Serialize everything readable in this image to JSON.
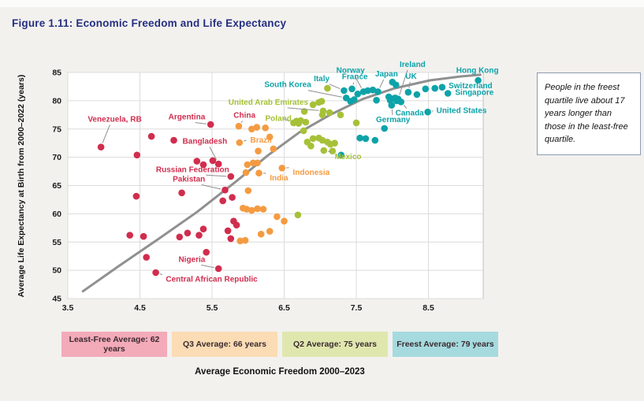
{
  "title": "Figure 1.11: Economic Freedom and Life Expectancy",
  "note": "People in the freest quartile live about 17 years longer than those in the least-free quartile.",
  "palette": {
    "least_free": "#d12d4e",
    "q3": "#f49b42",
    "q2": "#a6c138",
    "freest": "#0da3a8",
    "trend": "#909090",
    "grid": "#dcdcdc",
    "plot_border": "#c0c0c0",
    "leader": "#8f8f8f",
    "title_blue": "#252f80"
  },
  "legend": [
    {
      "label": "Least-Free Average: 62 years",
      "bg": "#f3aab9"
    },
    {
      "label": "Q3 Average: 66 years",
      "bg": "#fbdcb4"
    },
    {
      "label": "Q2 Average: 75 years",
      "bg": "#e0e7ae"
    },
    {
      "label": "Freest Average: 79 years",
      "bg": "#a5dade"
    }
  ],
  "chart_data": {
    "type": "scatter",
    "title": "Figure 1.11: Economic Freedom and Life Expectancy",
    "xlabel": "Average Economic Freedom 2000–2023",
    "ylabel": "Average Life Expectancy at Birth from 2000–2022 (years)",
    "xlim": [
      3.5,
      9.26
    ],
    "ylim": [
      45,
      85
    ],
    "x_ticks": [
      3.5,
      4.5,
      5.5,
      6.5,
      7.5,
      8.5
    ],
    "y_ticks": [
      45,
      50,
      55,
      60,
      65,
      70,
      75,
      80,
      85
    ],
    "grid": true,
    "series": [
      {
        "name": "Least-Free Quartile",
        "color_key": "least_free",
        "points": [
          [
            3.96,
            71.8
          ],
          [
            4.66,
            73.7
          ],
          [
            4.97,
            73.0
          ],
          [
            5.48,
            75.8
          ],
          [
            4.46,
            70.4
          ],
          [
            5.29,
            69.3
          ],
          [
            5.38,
            68.7
          ],
          [
            5.51,
            69.4
          ],
          [
            5.59,
            68.8
          ],
          [
            5.76,
            66.6
          ],
          [
            5.68,
            64.2
          ],
          [
            4.45,
            63.1
          ],
          [
            5.08,
            63.7
          ],
          [
            5.78,
            62.9
          ],
          [
            5.65,
            62.3
          ],
          [
            4.36,
            56.2
          ],
          [
            4.55,
            56.0
          ],
          [
            5.05,
            55.9
          ],
          [
            5.16,
            56.6
          ],
          [
            5.32,
            56.2
          ],
          [
            5.38,
            57.3
          ],
          [
            5.76,
            55.6
          ],
          [
            5.72,
            57.0
          ],
          [
            4.59,
            52.3
          ],
          [
            5.42,
            53.2
          ],
          [
            4.72,
            49.6
          ],
          [
            5.59,
            50.3
          ],
          [
            5.8,
            58.7
          ],
          [
            5.84,
            58.0
          ]
        ]
      },
      {
        "name": "Q3 Quartile",
        "color_key": "q3",
        "points": [
          [
            5.87,
            75.5
          ],
          [
            6.05,
            75.0
          ],
          [
            6.12,
            75.3
          ],
          [
            6.24,
            75.2
          ],
          [
            5.88,
            72.6
          ],
          [
            6.3,
            73.6
          ],
          [
            6.35,
            71.5
          ],
          [
            6.14,
            71.1
          ],
          [
            6.15,
            67.2
          ],
          [
            5.99,
            68.7
          ],
          [
            6.07,
            69.0
          ],
          [
            6.13,
            69.0
          ],
          [
            6.47,
            68.1
          ],
          [
            5.97,
            67.3
          ],
          [
            6.0,
            64.1
          ],
          [
            5.93,
            61.0
          ],
          [
            5.98,
            60.8
          ],
          [
            6.05,
            60.6
          ],
          [
            6.13,
            60.9
          ],
          [
            6.21,
            60.8
          ],
          [
            6.4,
            59.5
          ],
          [
            6.5,
            58.7
          ],
          [
            6.18,
            56.4
          ],
          [
            6.3,
            56.9
          ],
          [
            5.89,
            55.2
          ],
          [
            5.96,
            55.3
          ]
        ]
      },
      {
        "name": "Q2 Quartile",
        "color_key": "q2",
        "points": [
          [
            6.63,
            76.1
          ],
          [
            6.67,
            76.4
          ],
          [
            6.7,
            76.0
          ],
          [
            7.04,
            78.2
          ],
          [
            6.78,
            78.1
          ],
          [
            6.9,
            79.3
          ],
          [
            6.98,
            79.7
          ],
          [
            7.02,
            79.9
          ],
          [
            7.1,
            82.2
          ],
          [
            6.73,
            76.5
          ],
          [
            6.8,
            76.2
          ],
          [
            6.77,
            74.7
          ],
          [
            6.9,
            73.3
          ],
          [
            6.98,
            73.4
          ],
          [
            7.03,
            73.0
          ],
          [
            7.1,
            72.7
          ],
          [
            6.82,
            72.7
          ],
          [
            6.87,
            72.0
          ],
          [
            7.14,
            72.3
          ],
          [
            7.2,
            72.5
          ],
          [
            7.05,
            71.2
          ],
          [
            7.17,
            71.1
          ],
          [
            7.28,
            77.5
          ],
          [
            7.5,
            76.1
          ],
          [
            7.03,
            77.5
          ],
          [
            7.13,
            77.9
          ],
          [
            6.69,
            59.8
          ]
        ]
      },
      {
        "name": "Freest Quartile",
        "color_key": "freest",
        "points": [
          [
            7.33,
            81.8
          ],
          [
            7.44,
            82.1
          ],
          [
            7.36,
            80.5
          ],
          [
            7.42,
            79.9
          ],
          [
            7.47,
            80.2
          ],
          [
            7.6,
            81.6
          ],
          [
            7.66,
            81.8
          ],
          [
            7.73,
            81.9
          ],
          [
            7.8,
            81.6
          ],
          [
            7.52,
            81.2
          ],
          [
            7.78,
            80.1
          ],
          [
            7.95,
            80.7
          ],
          [
            7.97,
            80.1
          ],
          [
            8.02,
            80.4
          ],
          [
            8.04,
            80.5
          ],
          [
            8.06,
            80.0
          ],
          [
            8.08,
            80.3
          ],
          [
            7.99,
            79.2
          ],
          [
            8.12,
            79.8
          ],
          [
            8.22,
            81.5
          ],
          [
            8.34,
            81.1
          ],
          [
            8.0,
            83.3
          ],
          [
            8.05,
            82.8
          ],
          [
            8.69,
            82.4
          ],
          [
            8.77,
            81.3
          ],
          [
            9.19,
            83.6
          ],
          [
            8.49,
            78.0
          ],
          [
            8.46,
            82.1
          ],
          [
            8.59,
            82.2
          ],
          [
            7.89,
            75.1
          ],
          [
            7.55,
            73.4
          ],
          [
            7.63,
            73.3
          ],
          [
            7.76,
            73.0
          ],
          [
            7.29,
            70.4
          ]
        ]
      }
    ],
    "trend_line": [
      [
        3.71,
        46.3
      ],
      [
        4.2,
        50.7
      ],
      [
        4.75,
        55.5
      ],
      [
        5.29,
        60.3
      ],
      [
        5.84,
        65.8
      ],
      [
        6.28,
        70.4
      ],
      [
        6.71,
        74.4
      ],
      [
        7.15,
        77.6
      ],
      [
        7.59,
        80.3
      ],
      [
        8.03,
        82.2
      ],
      [
        8.52,
        83.6
      ],
      [
        8.95,
        84.3
      ],
      [
        9.22,
        84.6
      ]
    ],
    "labels": [
      {
        "text": "Venezuela, RB",
        "color_key": "least_free",
        "dot": [
          3.96,
          71.8
        ],
        "at": [
          4.15,
          76.3
        ],
        "anchor": "middle",
        "leader": true
      },
      {
        "text": "Argentina",
        "color_key": "least_free",
        "dot": [
          5.48,
          75.8
        ],
        "at": [
          5.15,
          76.7
        ],
        "anchor": "middle",
        "leader": true
      },
      {
        "text": "Bangladesh",
        "color_key": "least_free",
        "dot": [
          5.59,
          68.9
        ],
        "at": [
          5.4,
          72.4
        ],
        "anchor": "middle",
        "leader": true
      },
      {
        "text": "Russian Federation",
        "color_key": "least_free",
        "dot": [
          5.76,
          66.6
        ],
        "at": [
          5.23,
          67.4
        ],
        "anchor": "middle",
        "leader": true
      },
      {
        "text": "Pakistan",
        "color_key": "least_free",
        "dot": [
          5.68,
          64.2
        ],
        "at": [
          5.18,
          65.7
        ],
        "anchor": "middle",
        "leader": true
      },
      {
        "text": "Nigeria",
        "color_key": "least_free",
        "dot": [
          5.59,
          50.3
        ],
        "at": [
          5.22,
          51.5
        ],
        "anchor": "middle",
        "leader": true
      },
      {
        "text": "Central African Republic",
        "color_key": "least_free",
        "dot": [
          4.72,
          49.6
        ],
        "at": [
          4.86,
          48.0
        ],
        "anchor": "start",
        "leader": true
      },
      {
        "text": "China",
        "color_key": "least_free",
        "dot": [
          5.87,
          75.5
        ],
        "at": [
          5.95,
          77.0
        ],
        "anchor": "middle",
        "leader": true
      },
      {
        "text": "Brazil",
        "color_key": "q3",
        "dot": [
          5.88,
          72.6
        ],
        "at": [
          6.03,
          72.6
        ],
        "anchor": "start",
        "leader": true
      },
      {
        "text": "India",
        "color_key": "q3",
        "dot": [
          6.15,
          67.2
        ],
        "at": [
          6.3,
          65.9
        ],
        "anchor": "start",
        "leader": true
      },
      {
        "text": "Indonesia",
        "color_key": "q3",
        "dot": [
          6.47,
          68.1
        ],
        "at": [
          6.62,
          66.9
        ],
        "anchor": "start",
        "leader": true
      },
      {
        "text": "United Arab Emirates",
        "color_key": "q2",
        "dot": [
          7.04,
          78.2
        ],
        "at": [
          6.28,
          79.3
        ],
        "anchor": "middle",
        "leader": true
      },
      {
        "text": "Poland",
        "color_key": "q2",
        "dot": [
          6.63,
          76.1
        ],
        "at": [
          6.42,
          76.4
        ],
        "anchor": "middle",
        "leader": true
      },
      {
        "text": "Mexico",
        "color_key": "q2",
        "dot": [
          7.05,
          71.2
        ],
        "at": [
          7.2,
          69.7
        ],
        "anchor": "start",
        "leader": true
      },
      {
        "text": "South Korea",
        "color_key": "freest",
        "dot": [
          7.36,
          80.5
        ],
        "at": [
          6.55,
          82.4
        ],
        "anchor": "middle",
        "leader": true
      },
      {
        "text": "Italy",
        "color_key": "freest",
        "dot": [
          7.33,
          81.8
        ],
        "at": [
          7.02,
          83.5
        ],
        "anchor": "middle",
        "leader": true
      },
      {
        "text": "France",
        "color_key": "freest",
        "dot": [
          7.44,
          82.1
        ],
        "at": [
          7.48,
          83.8
        ],
        "anchor": "middle",
        "leader": true
      },
      {
        "text": "Norway",
        "color_key": "freest",
        "dot": [
          7.6,
          81.6
        ],
        "at": [
          7.42,
          84.9
        ],
        "anchor": "middle",
        "leader": true
      },
      {
        "text": "Japan",
        "color_key": "freest",
        "dot": [
          7.8,
          81.6
        ],
        "at": [
          7.92,
          84.3
        ],
        "anchor": "middle",
        "leader": true
      },
      {
        "text": "Ireland",
        "color_key": "freest",
        "dot": [
          8.08,
          80.3
        ],
        "at": [
          8.28,
          86.0
        ],
        "anchor": "middle",
        "leader": true
      },
      {
        "text": "UK",
        "color_key": "freest",
        "dot": [
          8.22,
          81.5
        ],
        "at": [
          8.26,
          83.9
        ],
        "anchor": "middle",
        "leader": true
      },
      {
        "text": "Hong Kong",
        "color_key": "freest",
        "dot": [
          9.19,
          83.6
        ],
        "at": [
          9.18,
          84.9
        ],
        "anchor": "middle",
        "leader": false
      },
      {
        "text": "Switzerland",
        "color_key": "freest",
        "dot": [
          8.69,
          82.4
        ],
        "at": [
          8.78,
          82.2
        ],
        "anchor": "start",
        "leader": false
      },
      {
        "text": "Singapore",
        "color_key": "freest",
        "dot": [
          8.77,
          81.3
        ],
        "at": [
          8.87,
          81.0
        ],
        "anchor": "start",
        "leader": false
      },
      {
        "text": "Canada",
        "color_key": "freest",
        "dot": [
          8.12,
          79.8
        ],
        "at": [
          8.24,
          77.4
        ],
        "anchor": "middle",
        "leader": true
      },
      {
        "text": "Germany",
        "color_key": "freest",
        "dot": [
          7.99,
          79.2
        ],
        "at": [
          8.01,
          76.2
        ],
        "anchor": "middle",
        "leader": true
      },
      {
        "text": "United States",
        "color_key": "freest",
        "dot": [
          8.49,
          78.0
        ],
        "at": [
          8.61,
          77.8
        ],
        "anchor": "start",
        "leader": true
      }
    ]
  }
}
